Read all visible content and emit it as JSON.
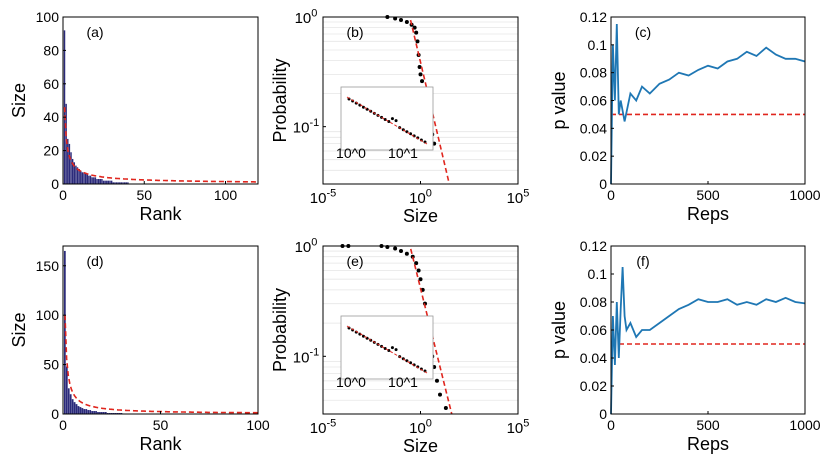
{
  "chart_data": [
    {
      "id": "a",
      "type": "bar",
      "panel_label": "(a)",
      "xlabel": "Rank",
      "ylabel": "Size",
      "xlim": [
        0,
        120
      ],
      "ylim": [
        0,
        100
      ],
      "xticks": [
        0,
        50,
        100
      ],
      "yticks": [
        0,
        20,
        40,
        60,
        80,
        100
      ],
      "values": [
        92,
        48,
        27,
        24,
        19,
        15,
        13,
        11,
        10,
        9,
        8,
        7,
        7,
        6,
        6,
        5,
        5,
        4,
        4,
        4,
        3,
        3,
        3,
        3,
        2,
        2,
        2,
        2,
        2,
        2,
        1,
        1,
        1,
        1,
        1,
        1,
        1,
        1,
        1,
        1
      ],
      "fit": {
        "type": "power-law",
        "amplitude": 46,
        "exponent": 0.75,
        "x_range": [
          1,
          120
        ],
        "style": "red dashed"
      }
    },
    {
      "id": "b",
      "type": "scatter",
      "panel_label": "(b)",
      "xlabel": "Size",
      "ylabel": "Probability",
      "xscale": "log",
      "yscale": "log",
      "xlim_exp": [
        -5,
        5
      ],
      "ylim": [
        0.03,
        1
      ],
      "xtick_exponents": [
        -5,
        0,
        5
      ],
      "yticks": [
        "10^-1",
        "10^0"
      ],
      "points": [
        [
          0.02,
          1.0
        ],
        [
          0.05,
          0.97
        ],
        [
          0.1,
          0.94
        ],
        [
          0.2,
          0.9
        ],
        [
          0.35,
          0.85
        ],
        [
          0.5,
          0.8
        ],
        [
          0.6,
          0.72
        ],
        [
          0.7,
          0.6
        ],
        [
          0.8,
          0.45
        ],
        [
          0.9,
          0.35
        ],
        [
          1.0,
          0.3
        ],
        [
          1.2,
          0.26
        ],
        [
          1.5,
          0.22
        ],
        [
          2,
          0.18
        ],
        [
          2.5,
          0.14
        ],
        [
          3,
          0.11
        ],
        [
          4,
          0.085
        ],
        [
          5,
          0.07
        ]
      ],
      "fit": {
        "type": "line",
        "points": [
          [
            0.2,
            1.3
          ],
          [
            30,
            0.03
          ]
        ],
        "style": "red dashed"
      },
      "inset": {
        "description": "log-log CCDF inset",
        "tick_labels": [
          "10^0",
          "10^1"
        ]
      }
    },
    {
      "id": "c",
      "type": "line",
      "panel_label": "(c)",
      "xlabel": "Reps",
      "ylabel": "p value",
      "xlim": [
        0,
        1000
      ],
      "ylim": [
        0,
        0.12
      ],
      "xticks": [
        0,
        500,
        1000
      ],
      "yticks": [
        0,
        0.02,
        0.04,
        0.06,
        0.08,
        0.1,
        0.12
      ],
      "x": [
        0,
        10,
        20,
        30,
        40,
        50,
        70,
        100,
        130,
        160,
        200,
        250,
        300,
        350,
        400,
        450,
        500,
        550,
        600,
        650,
        700,
        750,
        800,
        850,
        900,
        950,
        1000
      ],
      "y": [
        0,
        0.1,
        0.06,
        0.115,
        0.05,
        0.06,
        0.045,
        0.065,
        0.06,
        0.07,
        0.065,
        0.072,
        0.075,
        0.08,
        0.078,
        0.082,
        0.085,
        0.083,
        0.088,
        0.09,
        0.095,
        0.092,
        0.098,
        0.093,
        0.09,
        0.09,
        0.088
      ],
      "reference_line": {
        "y": 0.05,
        "style": "red dashed"
      }
    },
    {
      "id": "d",
      "type": "bar",
      "panel_label": "(d)",
      "xlabel": "Rank",
      "ylabel": "Size",
      "xlim": [
        0,
        100
      ],
      "ylim": [
        0,
        170
      ],
      "xticks": [
        0,
        50,
        100
      ],
      "yticks": [
        0,
        50,
        100,
        150
      ],
      "values": [
        165,
        48,
        26,
        20,
        15,
        12,
        10,
        8,
        7,
        6,
        5,
        5,
        4,
        4,
        3,
        3,
        3,
        2,
        2,
        2,
        2,
        2,
        1,
        1,
        1,
        1,
        1,
        1,
        1,
        1
      ],
      "fit": {
        "type": "power-law",
        "amplitude": 100,
        "exponent": 0.95,
        "x_range": [
          1,
          100
        ],
        "style": "red dashed"
      }
    },
    {
      "id": "e",
      "type": "scatter",
      "panel_label": "(e)",
      "xlabel": "Size",
      "ylabel": "Probability",
      "xscale": "log",
      "yscale": "log",
      "xlim_exp": [
        -5,
        5
      ],
      "ylim": [
        0.03,
        1
      ],
      "xtick_exponents": [
        -5,
        0,
        5
      ],
      "yticks": [
        "10^-1",
        "10^0"
      ],
      "points": [
        [
          0.0001,
          1.0
        ],
        [
          0.0002,
          1.0
        ],
        [
          0.01,
          1.0
        ],
        [
          0.02,
          0.98
        ],
        [
          0.05,
          0.95
        ],
        [
          0.1,
          0.9
        ],
        [
          0.2,
          0.85
        ],
        [
          0.4,
          0.8
        ],
        [
          0.6,
          0.7
        ],
        [
          0.8,
          0.6
        ],
        [
          1.0,
          0.5
        ],
        [
          1.3,
          0.4
        ],
        [
          1.7,
          0.3
        ],
        [
          2.2,
          0.22
        ],
        [
          3,
          0.15
        ],
        [
          4,
          0.1
        ],
        [
          5,
          0.08
        ],
        [
          7,
          0.06
        ],
        [
          10,
          0.045
        ],
        [
          20,
          0.034
        ]
      ],
      "fit": {
        "type": "line",
        "points": [
          [
            0.2,
            1.3
          ],
          [
            40,
            0.03
          ]
        ],
        "style": "red dashed"
      },
      "inset": {
        "description": "log-log CCDF inset",
        "tick_labels": [
          "10^0",
          "10^1"
        ]
      }
    },
    {
      "id": "f",
      "type": "line",
      "panel_label": "(f)",
      "xlabel": "Reps",
      "ylabel": "p value",
      "xlim": [
        0,
        1000
      ],
      "ylim": [
        0,
        0.12
      ],
      "xticks": [
        0,
        500,
        1000
      ],
      "yticks": [
        0,
        0.02,
        0.04,
        0.06,
        0.08,
        0.1,
        0.12
      ],
      "x": [
        0,
        10,
        20,
        30,
        40,
        50,
        60,
        70,
        80,
        100,
        130,
        160,
        200,
        250,
        300,
        350,
        400,
        450,
        500,
        550,
        600,
        650,
        700,
        750,
        800,
        850,
        900,
        950,
        1000
      ],
      "y": [
        0,
        0.07,
        0.035,
        0.08,
        0.04,
        0.075,
        0.105,
        0.07,
        0.06,
        0.065,
        0.055,
        0.06,
        0.06,
        0.065,
        0.07,
        0.075,
        0.078,
        0.082,
        0.08,
        0.08,
        0.082,
        0.078,
        0.08,
        0.078,
        0.082,
        0.08,
        0.083,
        0.08,
        0.079
      ],
      "reference_line": {
        "y": 0.05,
        "style": "red dashed"
      }
    }
  ]
}
